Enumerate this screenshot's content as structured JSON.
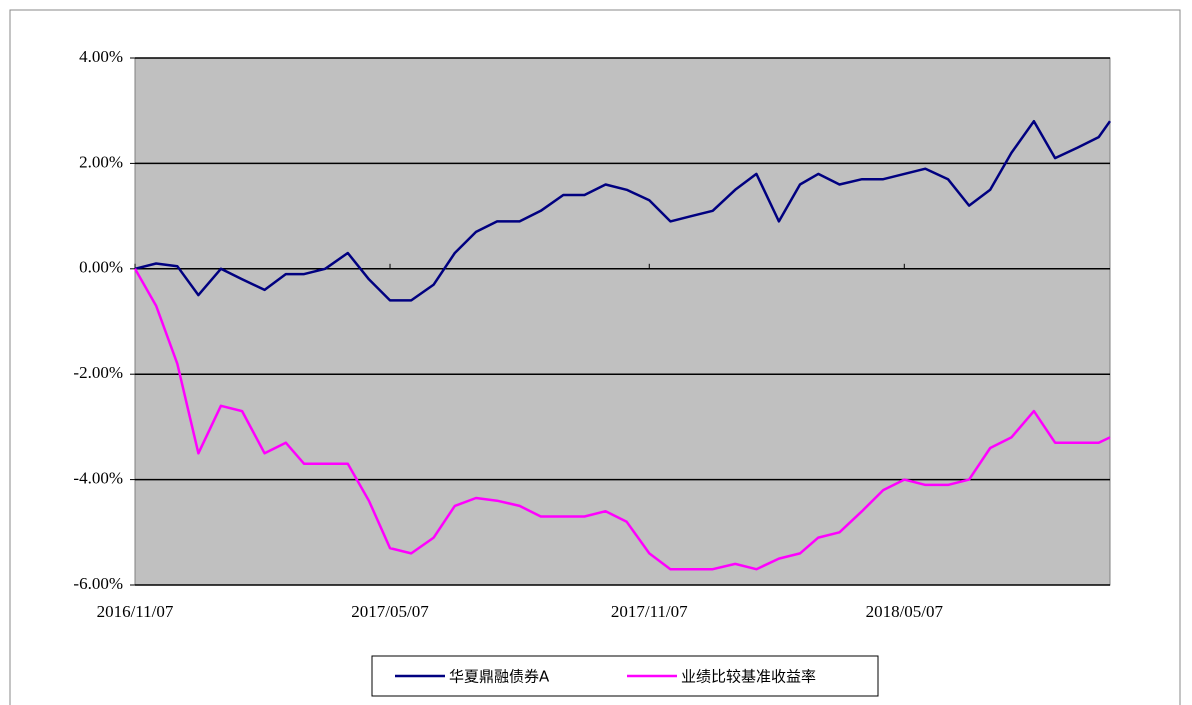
{
  "chart_data": {
    "type": "line",
    "x": [
      "2016/11/07",
      "2016/11/22",
      "2016/12/07",
      "2016/12/22",
      "2017/01/07",
      "2017/01/22",
      "2017/02/07",
      "2017/02/22",
      "2017/03/07",
      "2017/03/22",
      "2017/04/07",
      "2017/04/22",
      "2017/05/07",
      "2017/05/22",
      "2017/06/07",
      "2017/06/22",
      "2017/07/07",
      "2017/07/22",
      "2017/08/07",
      "2017/08/22",
      "2017/09/07",
      "2017/09/22",
      "2017/10/07",
      "2017/10/22",
      "2017/11/07",
      "2017/11/22",
      "2017/12/07",
      "2017/12/22",
      "2018/01/07",
      "2018/01/22",
      "2018/02/07",
      "2018/02/22",
      "2018/03/07",
      "2018/03/22",
      "2018/04/07",
      "2018/04/22",
      "2018/05/07",
      "2018/05/22",
      "2018/06/07",
      "2018/06/22",
      "2018/07/07",
      "2018/07/22",
      "2018/08/07",
      "2018/08/22",
      "2018/09/07",
      "2018/09/22",
      "2018/09/30"
    ],
    "series": [
      {
        "name": "华夏鼎融债券A",
        "color": "#000080",
        "values": [
          0.0,
          0.1,
          0.05,
          -0.5,
          0.0,
          -0.2,
          -0.4,
          -0.1,
          -0.1,
          0.0,
          0.3,
          -0.2,
          -0.6,
          -0.6,
          -0.3,
          0.3,
          0.7,
          0.9,
          0.9,
          1.1,
          1.4,
          1.4,
          1.6,
          1.5,
          1.3,
          0.9,
          1.0,
          1.1,
          1.5,
          1.8,
          0.9,
          1.6,
          1.8,
          1.6,
          1.7,
          1.7,
          1.8,
          1.9,
          1.7,
          1.2,
          1.5,
          2.2,
          2.8,
          2.1,
          2.3,
          2.5,
          2.8
        ]
      },
      {
        "name": "业绩比较基准收益率",
        "color": "#ff00ff",
        "values": [
          0.0,
          -0.7,
          -1.8,
          -3.5,
          -2.6,
          -2.7,
          -3.5,
          -3.3,
          -3.7,
          -3.7,
          -3.7,
          -4.4,
          -5.3,
          -5.4,
          -5.1,
          -4.5,
          -4.35,
          -4.4,
          -4.5,
          -4.7,
          -4.7,
          -4.7,
          -4.6,
          -4.8,
          -5.4,
          -5.7,
          -5.7,
          -5.7,
          -5.6,
          -5.7,
          -5.5,
          -5.4,
          -5.1,
          -5.0,
          -4.6,
          -4.2,
          -4.0,
          -4.1,
          -4.1,
          -4.0,
          -3.4,
          -3.2,
          -2.7,
          -3.3,
          -3.3,
          -3.3,
          -3.2
        ]
      }
    ],
    "xlim": [
      "2016/11/07",
      "2018/09/30"
    ],
    "xticks": [
      "2016/11/07",
      "2017/05/07",
      "2017/11/07",
      "2018/05/07"
    ],
    "ylim": [
      -6,
      4
    ],
    "yticks": [
      {
        "value": -6,
        "label": "-6.00%"
      },
      {
        "value": -4,
        "label": "-4.00%"
      },
      {
        "value": -2,
        "label": "-2.00%"
      },
      {
        "value": 0,
        "label": "0.00%"
      },
      {
        "value": 2,
        "label": "2.00%"
      },
      {
        "value": 4,
        "label": "4.00%"
      }
    ],
    "grid": true
  }
}
